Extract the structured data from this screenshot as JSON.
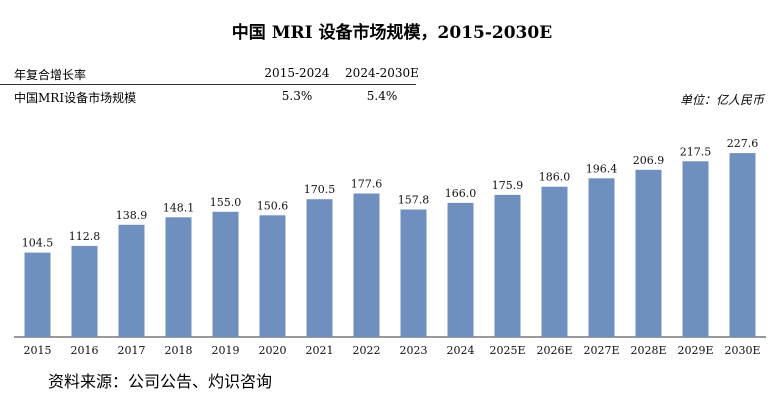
{
  "chart_data": {
    "type": "bar",
    "title": "中国 MRI 设备市场规模，2015-2030E",
    "unit_label": "单位：亿人民币",
    "categories": [
      "2015",
      "2016",
      "2017",
      "2018",
      "2019",
      "2020",
      "2021",
      "2022",
      "2023",
      "2024",
      "2025E",
      "2026E",
      "2027E",
      "2028E",
      "2029E",
      "2030E"
    ],
    "values": [
      104.5,
      112.8,
      138.9,
      148.1,
      155.0,
      150.6,
      170.5,
      177.6,
      157.8,
      166.0,
      175.9,
      186.0,
      196.4,
      206.9,
      217.5,
      227.6
    ],
    "value_labels": [
      "104.5",
      "112.8",
      "138.9",
      "148.1",
      "155.0",
      "150.6",
      "170.5",
      "177.6",
      "157.8",
      "166.0",
      "175.9",
      "186.0",
      "196.4",
      "206.9",
      "217.5",
      "227.6"
    ],
    "ylim": [
      0,
      250
    ],
    "bar_color": "#6f8fbf",
    "source": "资料来源：公司公告、灼识咨询"
  },
  "cagr_table": {
    "header": [
      "年复合增长率",
      "2015-2024",
      "2024-2030E"
    ],
    "rows": [
      [
        "中国MRI设备市场规模",
        "5.3%",
        "5.4%"
      ]
    ]
  }
}
